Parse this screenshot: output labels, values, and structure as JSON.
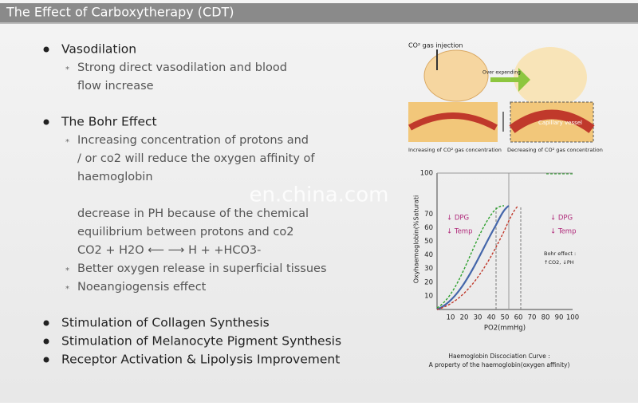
{
  "header": {
    "title": "The Effect of Carboxytherapy (CDT)"
  },
  "items": [
    {
      "label": "Vasodilation",
      "subitems": [
        {
          "lines": [
            "Strong direct vasodilation and blood",
            "flow  increase"
          ]
        }
      ]
    },
    {
      "label": "The Bohr Effect",
      "subitems": [
        {
          "lines": [
            "Increasing concentration of protons and",
            "/ or co2 will reduce the oxygen affinity of",
            "haemoglobin"
          ],
          "continuation": [
            "decrease in PH because of the chemical",
            "equilibrium between protons and co2",
            "CO2 + H2O ⟵  ⟶  H + +HCO3-"
          ]
        },
        {
          "lines": [
            "Better oxygen release in superficial tissues"
          ]
        },
        {
          "lines": [
            "Noeangiogensis effect"
          ]
        }
      ]
    }
  ],
  "bottom_items": [
    "Stimulation of Collagen Synthesis",
    "Stimulation of Melanocyte Pigment Synthesis",
    "Receptor Activation & Lipolysis Improvement"
  ],
  "watermark": "en.china.com",
  "figure": {
    "injection_label": "CO² gas injection",
    "expanding_label": "Over expending",
    "vessel_label": "Capillary vessel",
    "increase_label": "Increasing of CO² gas concentration",
    "decrease_label": "Decreasing of CO² gas concentration",
    "curve": {
      "y_label": "Oxyhaemoglobin(%Saturati",
      "x_label": "PO2(mmHg)",
      "xticks": [
        10,
        20,
        30,
        40,
        50,
        60,
        70,
        80,
        90,
        100
      ],
      "yticks": [
        10,
        20,
        30,
        40,
        50,
        60,
        70,
        100
      ],
      "left_notes": [
        "↓ DPG",
        "↓ Temp"
      ],
      "right_notes": [
        "↓ DPG",
        "↓ Temp"
      ],
      "bohr": [
        "Bohr effect :",
        "↑CO2, ↓PH"
      ],
      "caption": [
        "Haemoglobin Discociation Curve :",
        "A property of the haemoglobin(oxygen affinity)"
      ]
    }
  }
}
